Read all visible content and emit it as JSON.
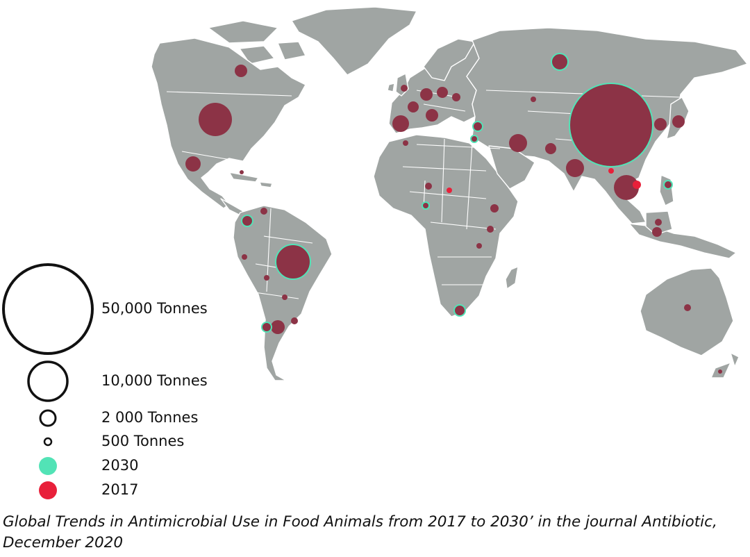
{
  "legend": {
    "sizes": [
      {
        "label": "50,000 Tonnes",
        "tonnes": 50000
      },
      {
        "label": "10,000 Tonnes",
        "tonnes": 10000
      },
      {
        "label": "2 000 Tonnes",
        "tonnes": 2000
      },
      {
        "label": "500 Tonnes",
        "tonnes": 500
      }
    ],
    "years": [
      {
        "label": "2030",
        "color": "#52e3b6"
      },
      {
        "label": "2017",
        "color": "#e8203a"
      }
    ]
  },
  "colors": {
    "land": "#a0a5a3",
    "bubble": "#8c3346",
    "ring_2030": "#52e3b6",
    "dot_2017": "#e8203a"
  },
  "caption": "Global Trends in Antimicrobial Use in Food Animals from 2017 to 2030’ in the journal Antibiotic, December 2020"
}
